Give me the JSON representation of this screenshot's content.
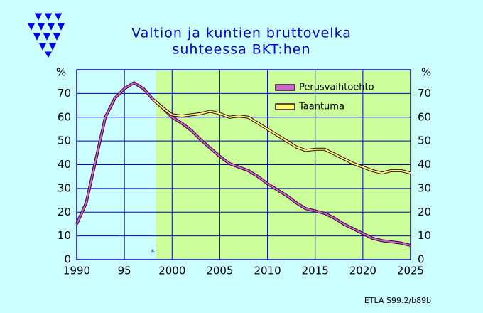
{
  "chart_data": {
    "type": "line",
    "title": [
      "Valtion ja kuntien bruttovelka",
      "suhteessa BKT:hen"
    ],
    "y_unit_label": "%",
    "source": "ETLA S99.2/b89b",
    "annotation": "*",
    "x": [
      1990,
      1991,
      1992,
      1993,
      1994,
      1995,
      1996,
      1997,
      1998,
      1999,
      2000,
      2001,
      2002,
      2003,
      2004,
      2005,
      2006,
      2007,
      2008,
      2009,
      2010,
      2011,
      2012,
      2013,
      2014,
      2015,
      2016,
      2017,
      2018,
      2019,
      2020,
      2021,
      2022,
      2023,
      2024,
      2025
    ],
    "series": [
      {
        "name": "Perusvaihtoehto",
        "color": "#cc66cc",
        "values": [
          15,
          24,
          42,
          60,
          68,
          72,
          74.5,
          72,
          67.5,
          64,
          60,
          57.5,
          54.5,
          50.5,
          47,
          43.5,
          40.5,
          39,
          37.5,
          35,
          32,
          29.5,
          27,
          24,
          21.5,
          20.5,
          19.5,
          17.5,
          15,
          13,
          11,
          9,
          8,
          7.5,
          7,
          6
        ]
      },
      {
        "name": "Taantuma",
        "color": "#ffff66",
        "values": [
          null,
          null,
          null,
          null,
          null,
          null,
          null,
          null,
          67.5,
          64,
          61,
          60.5,
          61,
          61.5,
          62.5,
          61.5,
          60,
          60.5,
          60,
          57.5,
          55,
          52.5,
          50,
          47.5,
          46,
          46.5,
          46.5,
          44.5,
          42.5,
          40.5,
          39,
          37.5,
          36.5,
          37.5,
          37.5,
          36.5
        ]
      }
    ],
    "xlim": [
      1990,
      2025
    ],
    "xticks": [
      1990,
      {
        "value": 1995,
        "label": "95"
      },
      2000,
      2005,
      2010,
      2015,
      2020,
      2025
    ],
    "ylim": [
      0,
      80
    ],
    "yticks": [
      0,
      10,
      20,
      30,
      40,
      50,
      60,
      70
    ],
    "forecast_start": 1998.3,
    "grid": true,
    "legend": "upper right"
  }
}
